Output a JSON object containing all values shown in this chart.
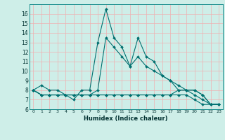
{
  "xlabel": "Humidex (Indice chaleur)",
  "background_color": "#ceeee8",
  "grid_color": "#f0b0b0",
  "line_color": "#007070",
  "xlim": [
    -0.5,
    23.5
  ],
  "ylim": [
    6,
    17
  ],
  "yticks": [
    6,
    7,
    8,
    9,
    10,
    11,
    12,
    13,
    14,
    15,
    16
  ],
  "xticks": [
    0,
    1,
    2,
    3,
    4,
    5,
    6,
    7,
    8,
    9,
    10,
    11,
    12,
    13,
    14,
    15,
    16,
    17,
    18,
    19,
    20,
    21,
    22,
    23
  ],
  "series": [
    {
      "x": [
        0,
        1,
        2,
        3,
        4,
        5,
        6,
        7,
        8,
        9,
        10,
        11,
        12,
        13,
        14,
        15,
        16,
        17,
        18,
        19,
        20,
        21,
        22,
        23
      ],
      "y": [
        8,
        8.5,
        8,
        8,
        7.5,
        7,
        8,
        8,
        13,
        16.5,
        13.5,
        12.5,
        10.5,
        13.5,
        11.5,
        11,
        9.5,
        9,
        8.5,
        8,
        8,
        7.5,
        6.5,
        6.5
      ]
    },
    {
      "x": [
        0,
        1,
        2,
        3,
        4,
        5,
        6,
        7,
        8,
        9,
        10,
        11,
        12,
        13,
        14,
        15,
        16,
        17,
        18,
        19,
        20,
        21,
        22,
        23
      ],
      "y": [
        8,
        7.5,
        7.5,
        7.5,
        7.5,
        7.5,
        7.5,
        7.5,
        8,
        13.5,
        12.5,
        11.5,
        10.5,
        11.5,
        10.5,
        10,
        9.5,
        9,
        8,
        8,
        8,
        7.5,
        6.5,
        6.5
      ]
    },
    {
      "x": [
        0,
        1,
        2,
        3,
        4,
        5,
        6,
        7,
        8,
        9,
        10,
        11,
        12,
        13,
        14,
        15,
        16,
        17,
        18,
        19,
        20,
        21,
        22,
        23
      ],
      "y": [
        8,
        7.5,
        7.5,
        7.5,
        7.5,
        7.5,
        7.5,
        7.5,
        7.5,
        7.5,
        7.5,
        7.5,
        7.5,
        7.5,
        7.5,
        7.5,
        7.5,
        7.5,
        8,
        8,
        7.5,
        7,
        6.5,
        6.5
      ]
    },
    {
      "x": [
        0,
        1,
        2,
        3,
        4,
        5,
        6,
        7,
        8,
        9,
        10,
        11,
        12,
        13,
        14,
        15,
        16,
        17,
        18,
        19,
        20,
        21,
        22,
        23
      ],
      "y": [
        8,
        7.5,
        7.5,
        7.5,
        7.5,
        7.5,
        7.5,
        7.5,
        7.5,
        7.5,
        7.5,
        7.5,
        7.5,
        7.5,
        7.5,
        7.5,
        7.5,
        7.5,
        7.5,
        7.5,
        7,
        6.5,
        6.5,
        6.5
      ]
    }
  ]
}
